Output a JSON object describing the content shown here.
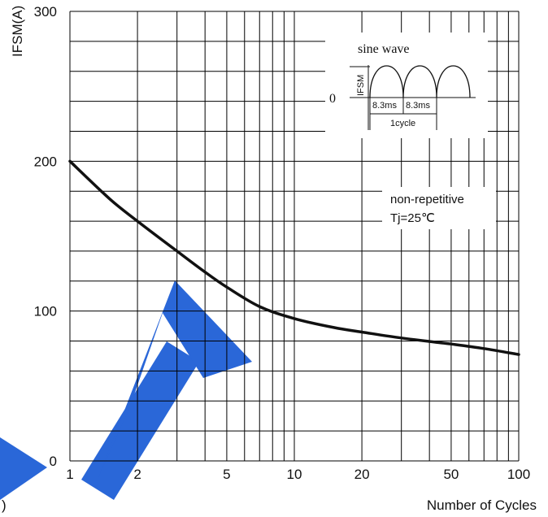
{
  "chart_data": {
    "type": "line",
    "x_scale": "log",
    "xlabel": "Number of Cycles",
    "ylabel": "IFSM(A)",
    "xlim": [
      1,
      100
    ],
    "ylim": [
      0,
      300
    ],
    "x_ticks": [
      1,
      2,
      5,
      10,
      20,
      50,
      100
    ],
    "x_tick_labels": [
      "1",
      "2",
      "5",
      "10",
      "20",
      "50",
      "100"
    ],
    "y_ticks": [
      0,
      100,
      200,
      300
    ],
    "y_tick_labels": [
      "0",
      "100",
      "200",
      "300"
    ],
    "grid": true,
    "series": [
      {
        "x": [
          1,
          1.5,
          2,
          3,
          4,
          5,
          7,
          10,
          15,
          20,
          30,
          50,
          70,
          100
        ],
        "values": [
          200,
          175,
          160,
          140,
          126,
          116,
          103,
          95,
          89,
          86,
          82,
          78,
          75,
          71
        ]
      }
    ],
    "annotations": {
      "condition_line1": "non-repetitive",
      "condition_line2": "Tj=25℃",
      "inset_title": "sine wave",
      "inset_ylabel": "IFSM",
      "inset_zero": "0",
      "inset_period1": "8.3ms",
      "inset_period2": "8.3ms",
      "inset_cycle": "1cycle"
    },
    "watermark_fragment": ")"
  },
  "colors": {
    "curve": "#111111",
    "grid": "#000000",
    "watermark": "#1f5fd6"
  }
}
